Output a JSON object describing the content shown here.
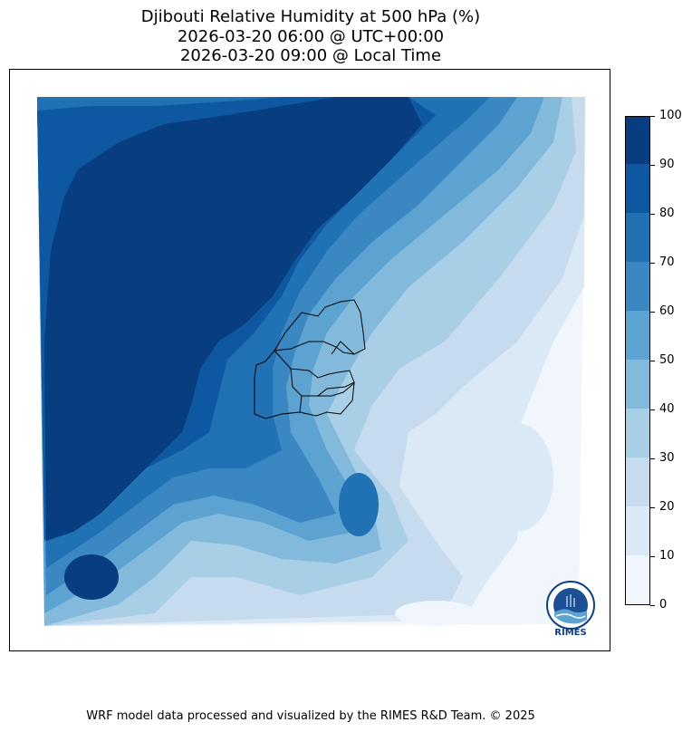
{
  "title": {
    "line1": "Djibouti Relative Humidity at 500 hPa (%)",
    "line2": "2026-03-20 06:00 @ UTC+00:00",
    "line3": "2026-03-20 09:00 @ Local Time"
  },
  "colorbar": {
    "ticks": [
      "0",
      "10",
      "20",
      "30",
      "40",
      "50",
      "60",
      "70",
      "80",
      "90",
      "100"
    ],
    "colors": [
      "#f1f6fd",
      "#dbe9f6",
      "#c7dbef",
      "#a9cfe6",
      "#83badc",
      "#5da3d1",
      "#3a87c2",
      "#2171b5",
      "#0e58a2",
      "#083d7f"
    ]
  },
  "palette": {
    "darkest": "#083d7f",
    "dark": "#0e58a2",
    "mid_dark": "#2171b5",
    "mid": "#3a87c2",
    "mid_light": "#5da3d1",
    "light": "#83badc",
    "lighter": "#a9cfe6",
    "pale": "#c7dbef",
    "paler": "#dbe9f6",
    "palest": "#f1f6fd"
  },
  "logo": {
    "text": "RIMES"
  },
  "footer": "WRF model data processed and visualized by the RIMES R&D Team. © 2025"
}
